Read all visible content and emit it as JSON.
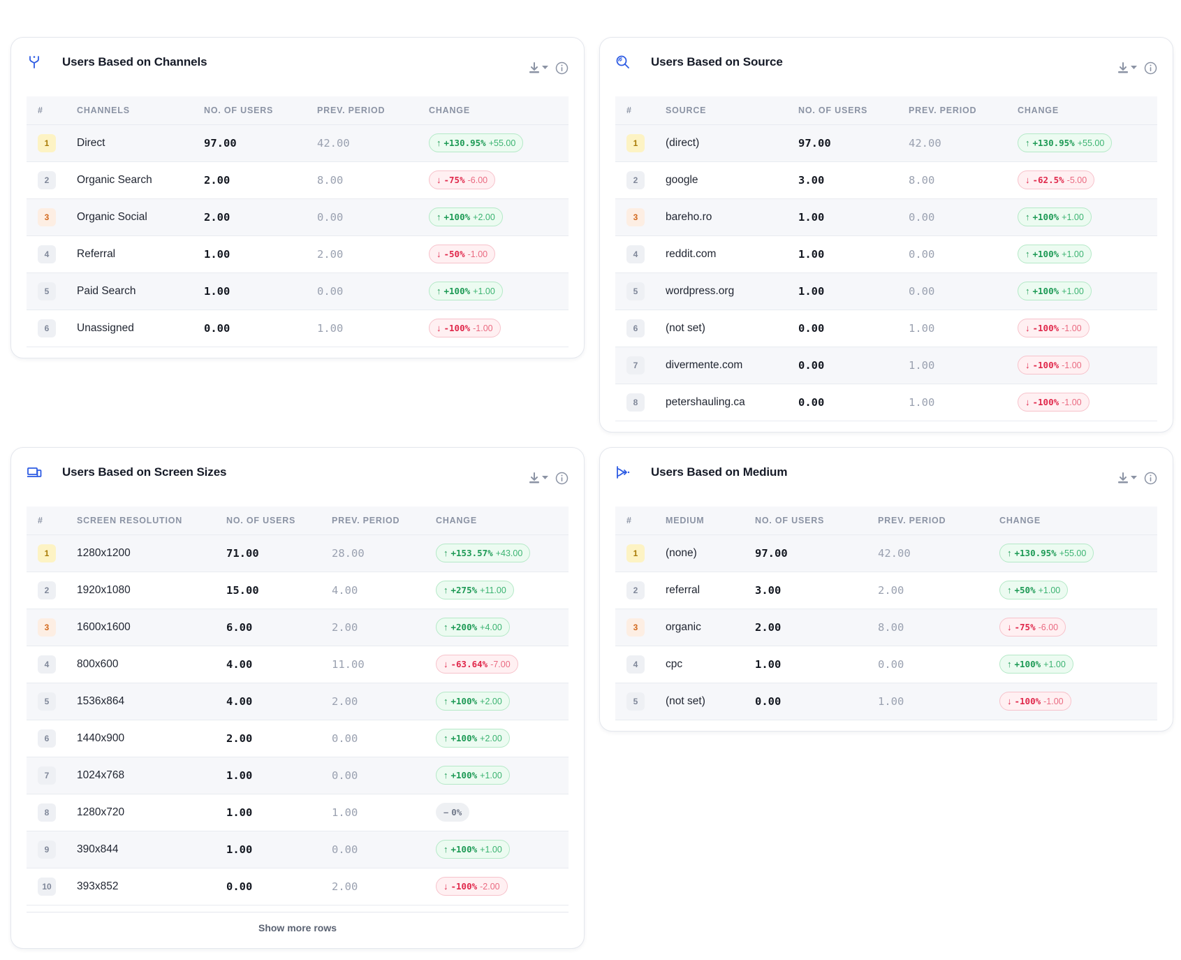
{
  "colors": {
    "accent": "#2d5be3",
    "up": "#1d9a55",
    "down": "#e0284b",
    "card_border": "#e4e7ed"
  },
  "cards": {
    "channels": {
      "title": "Users Based on Channels",
      "icon": "channels-fork-icon",
      "headers": [
        "#",
        "CHANNELS",
        "NO. OF USERS",
        "PREV. PERIOD",
        "CHANGE"
      ],
      "rows": [
        {
          "rank": "1",
          "name": "Direct",
          "users": "97.00",
          "prev": "42.00",
          "dir": "up",
          "pct": "+130.95%",
          "delta": "+55.00"
        },
        {
          "rank": "2",
          "name": "Organic Search",
          "users": "2.00",
          "prev": "8.00",
          "dir": "down",
          "pct": "-75%",
          "delta": "-6.00"
        },
        {
          "rank": "3",
          "name": "Organic Social",
          "users": "2.00",
          "prev": "0.00",
          "dir": "up",
          "pct": "+100%",
          "delta": "+2.00"
        },
        {
          "rank": "4",
          "name": "Referral",
          "users": "1.00",
          "prev": "2.00",
          "dir": "down",
          "pct": "-50%",
          "delta": "-1.00"
        },
        {
          "rank": "5",
          "name": "Paid Search",
          "users": "1.00",
          "prev": "0.00",
          "dir": "up",
          "pct": "+100%",
          "delta": "+1.00"
        },
        {
          "rank": "6",
          "name": "Unassigned",
          "users": "0.00",
          "prev": "1.00",
          "dir": "down",
          "pct": "-100%",
          "delta": "-1.00"
        }
      ]
    },
    "source": {
      "title": "Users Based on Source",
      "icon": "source-search-icon",
      "headers": [
        "#",
        "SOURCE",
        "NO. OF USERS",
        "PREV. PERIOD",
        "CHANGE"
      ],
      "rows": [
        {
          "rank": "1",
          "name": "(direct)",
          "users": "97.00",
          "prev": "42.00",
          "dir": "up",
          "pct": "+130.95%",
          "delta": "+55.00"
        },
        {
          "rank": "2",
          "name": "google",
          "users": "3.00",
          "prev": "8.00",
          "dir": "down",
          "pct": "-62.5%",
          "delta": "-5.00"
        },
        {
          "rank": "3",
          "name": "bareho.ro",
          "users": "1.00",
          "prev": "0.00",
          "dir": "up",
          "pct": "+100%",
          "delta": "+1.00"
        },
        {
          "rank": "4",
          "name": "reddit.com",
          "users": "1.00",
          "prev": "0.00",
          "dir": "up",
          "pct": "+100%",
          "delta": "+1.00"
        },
        {
          "rank": "5",
          "name": "wordpress.org",
          "users": "1.00",
          "prev": "0.00",
          "dir": "up",
          "pct": "+100%",
          "delta": "+1.00"
        },
        {
          "rank": "6",
          "name": "(not set)",
          "users": "0.00",
          "prev": "1.00",
          "dir": "down",
          "pct": "-100%",
          "delta": "-1.00"
        },
        {
          "rank": "7",
          "name": "divermente.com",
          "users": "0.00",
          "prev": "1.00",
          "dir": "down",
          "pct": "-100%",
          "delta": "-1.00"
        },
        {
          "rank": "8",
          "name": "petershauling.ca",
          "users": "0.00",
          "prev": "1.00",
          "dir": "down",
          "pct": "-100%",
          "delta": "-1.00"
        }
      ]
    },
    "screen": {
      "title": "Users Based on Screen Sizes",
      "icon": "devices-icon",
      "headers": [
        "#",
        "SCREEN RESOLUTION",
        "NO. OF USERS",
        "PREV. PERIOD",
        "CHANGE"
      ],
      "rows": [
        {
          "rank": "1",
          "name": "1280x1200",
          "users": "71.00",
          "prev": "28.00",
          "dir": "up",
          "pct": "+153.57%",
          "delta": "+43.00"
        },
        {
          "rank": "2",
          "name": "1920x1080",
          "users": "15.00",
          "prev": "4.00",
          "dir": "up",
          "pct": "+275%",
          "delta": "+11.00"
        },
        {
          "rank": "3",
          "name": "1600x1600",
          "users": "6.00",
          "prev": "2.00",
          "dir": "up",
          "pct": "+200%",
          "delta": "+4.00"
        },
        {
          "rank": "4",
          "name": "800x600",
          "users": "4.00",
          "prev": "11.00",
          "dir": "down",
          "pct": "-63.64%",
          "delta": "-7.00"
        },
        {
          "rank": "5",
          "name": "1536x864",
          "users": "4.00",
          "prev": "2.00",
          "dir": "up",
          "pct": "+100%",
          "delta": "+2.00"
        },
        {
          "rank": "6",
          "name": "1440x900",
          "users": "2.00",
          "prev": "0.00",
          "dir": "up",
          "pct": "+100%",
          "delta": "+2.00"
        },
        {
          "rank": "7",
          "name": "1024x768",
          "users": "1.00",
          "prev": "0.00",
          "dir": "up",
          "pct": "+100%",
          "delta": "+1.00"
        },
        {
          "rank": "8",
          "name": "1280x720",
          "users": "1.00",
          "prev": "1.00",
          "dir": "flat",
          "pct": "0%",
          "delta": ""
        },
        {
          "rank": "9",
          "name": "390x844",
          "users": "1.00",
          "prev": "0.00",
          "dir": "up",
          "pct": "+100%",
          "delta": "+1.00"
        },
        {
          "rank": "10",
          "name": "393x852",
          "users": "0.00",
          "prev": "2.00",
          "dir": "down",
          "pct": "-100%",
          "delta": "-2.00"
        }
      ],
      "show_more": "Show more rows"
    },
    "medium": {
      "title": "Users Based on Medium",
      "icon": "medium-split-icon",
      "headers": [
        "#",
        "MEDIUM",
        "NO. OF USERS",
        "PREV. PERIOD",
        "CHANGE"
      ],
      "rows": [
        {
          "rank": "1",
          "name": "(none)",
          "users": "97.00",
          "prev": "42.00",
          "dir": "up",
          "pct": "+130.95%",
          "delta": "+55.00"
        },
        {
          "rank": "2",
          "name": "referral",
          "users": "3.00",
          "prev": "2.00",
          "dir": "up",
          "pct": "+50%",
          "delta": "+1.00"
        },
        {
          "rank": "3",
          "name": "organic",
          "users": "2.00",
          "prev": "8.00",
          "dir": "down",
          "pct": "-75%",
          "delta": "-6.00"
        },
        {
          "rank": "4",
          "name": "cpc",
          "users": "1.00",
          "prev": "0.00",
          "dir": "up",
          "pct": "+100%",
          "delta": "+1.00"
        },
        {
          "rank": "5",
          "name": "(not set)",
          "users": "0.00",
          "prev": "1.00",
          "dir": "down",
          "pct": "-100%",
          "delta": "-1.00"
        }
      ]
    }
  }
}
